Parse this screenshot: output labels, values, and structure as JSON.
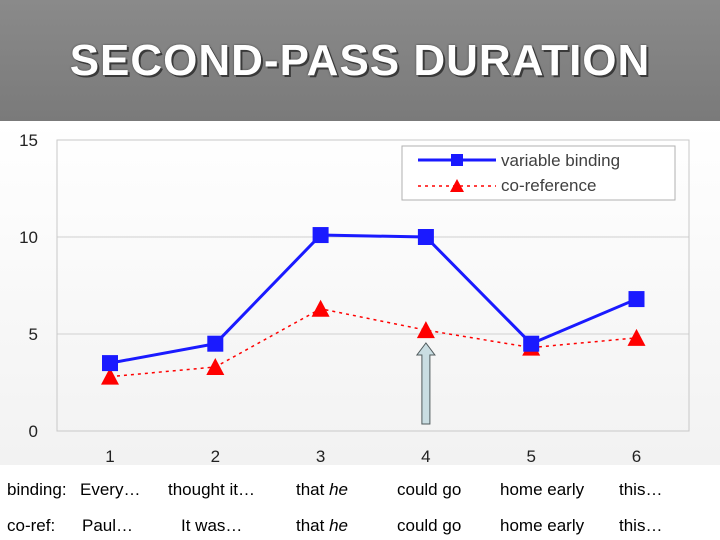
{
  "title": "SECOND-PASS DURATION",
  "chart_data": {
    "type": "line",
    "x": [
      1,
      2,
      3,
      4,
      5,
      6
    ],
    "categories": [
      "1",
      "2",
      "3",
      "4",
      "5",
      "6"
    ],
    "ylim": [
      0,
      15
    ],
    "yticks": [
      "0",
      "5",
      "10",
      "15"
    ],
    "grid": true,
    "legend_position": "top-right",
    "series": [
      {
        "name": "variable binding",
        "values": [
          3.5,
          4.5,
          10.1,
          10.0,
          4.5,
          6.8
        ],
        "color": "#1a1aff",
        "marker": "square",
        "line": "solid"
      },
      {
        "name": "co-reference",
        "values": [
          2.8,
          3.3,
          6.3,
          5.2,
          4.3,
          4.8
        ],
        "color": "#ff0000",
        "marker": "triangle",
        "line": "dashed"
      }
    ],
    "arrow_at_x": 4
  },
  "rows": {
    "binding": {
      "label": "binding:",
      "first": "Every…",
      "second": "thought it…",
      "third_prefix": "that ",
      "third_pronoun": "he",
      "fourth": "could go",
      "fifth": "home early",
      "sixth": "this…"
    },
    "coref": {
      "label": "co-ref:",
      "first": "Paul…",
      "second": "It was…",
      "third_prefix": "that ",
      "third_pronoun": "he",
      "fourth": "could go",
      "fifth": "home early",
      "sixth": "this…"
    }
  }
}
